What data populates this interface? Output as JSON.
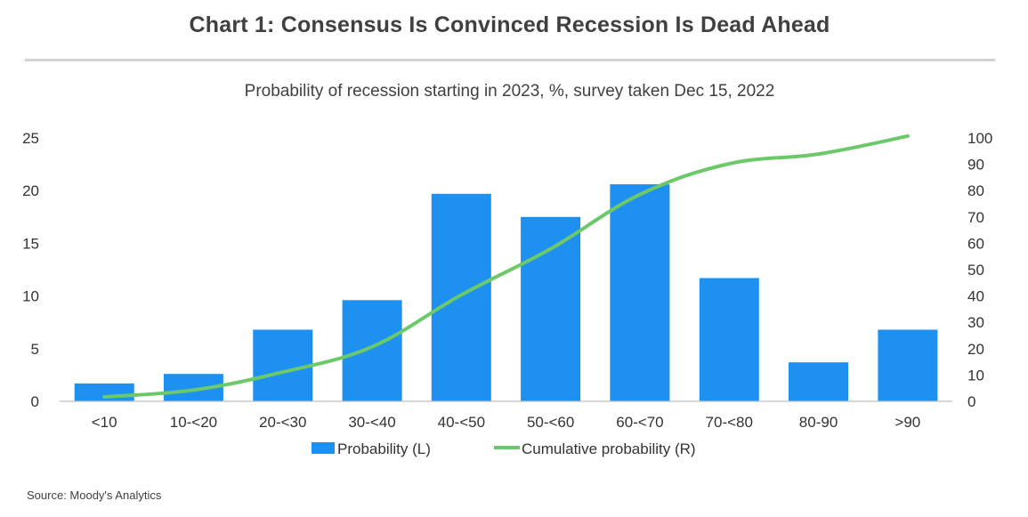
{
  "header": {
    "title": "Chart 1: Consensus Is Convinced Recession Is Dead Ahead",
    "subtitle": "Probability of recession starting in 2023, %, survey taken Dec 15, 2022"
  },
  "footer": {
    "source": "Source: Moody's Analytics"
  },
  "chart_data": {
    "type": "bar",
    "categories": [
      "<10",
      "10-<20",
      "20-<30",
      "30-<40",
      "40-<50",
      "50-<60",
      "60-<70",
      "70-<80",
      "80-90",
      ">90"
    ],
    "series": [
      {
        "name": "Probability (L)",
        "type": "bar",
        "axis": "left",
        "color": "#1e90f0",
        "values": [
          1.7,
          2.6,
          6.8,
          9.6,
          19.7,
          17.5,
          20.6,
          11.7,
          3.7,
          6.8
        ]
      },
      {
        "name": "Cumulative probability (R)",
        "type": "line",
        "axis": "right",
        "color": "#6cc96a",
        "values": [
          1.7,
          4.3,
          11.1,
          20.7,
          40.4,
          57.9,
          78.5,
          90.2,
          93.9,
          100.7
        ]
      }
    ],
    "y_left": {
      "ylim": [
        0,
        25
      ],
      "ticks": [
        0,
        5,
        10,
        15,
        20,
        25
      ]
    },
    "y_right": {
      "ylim": [
        0,
        100
      ],
      "ticks": [
        0,
        10,
        20,
        30,
        40,
        50,
        60,
        70,
        80,
        90,
        100
      ]
    },
    "legend_position": "bottom",
    "grid": false
  }
}
